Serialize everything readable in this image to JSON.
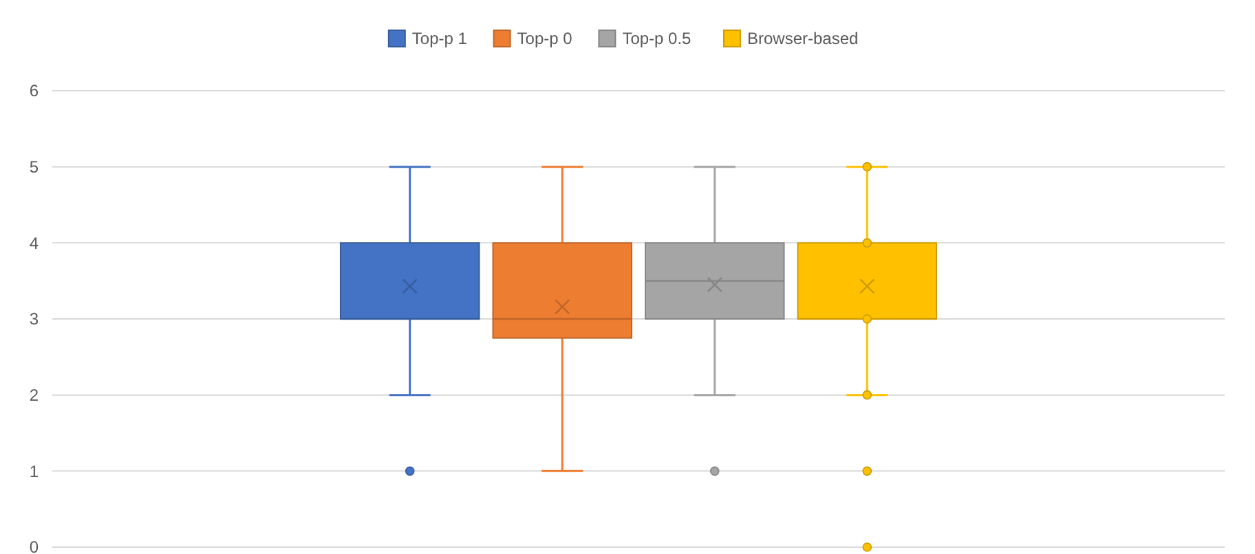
{
  "chart_data": {
    "type": "box",
    "categories": [
      null
    ],
    "ylim": [
      0,
      6
    ],
    "yticks": [
      0,
      1,
      2,
      3,
      4,
      5,
      6
    ],
    "grid": "y",
    "legend": "top",
    "series": [
      {
        "name": "Top-p 1",
        "color": "#4472c4",
        "boxes": [
          {
            "low": 2,
            "q1": 3,
            "median": 3,
            "q3": 4,
            "high": 5,
            "mean": 3.43,
            "outliers": [
              1
            ]
          }
        ]
      },
      {
        "name": "Top-p 0",
        "color": "#ed7d31",
        "boxes": [
          {
            "low": 1,
            "q1": 2.75,
            "median": 3,
            "q3": 4,
            "high": 5,
            "mean": 3.16
          }
        ]
      },
      {
        "name": "Top-p 0.5",
        "color": "#a5a5a5",
        "boxes": [
          {
            "low": 2,
            "q1": 3,
            "median": 3.5,
            "q3": 4,
            "high": 5,
            "mean": 3.45,
            "outliers": [
              1
            ]
          }
        ]
      },
      {
        "name": "Browser-based",
        "color": "#ffc000",
        "boxes": [
          {
            "low": 2,
            "q1": 3,
            "median": 3,
            "q3": 4,
            "high": 5,
            "mean": 3.43,
            "outliers": [
              5,
              4,
              3,
              2,
              1,
              0
            ]
          }
        ]
      }
    ]
  }
}
